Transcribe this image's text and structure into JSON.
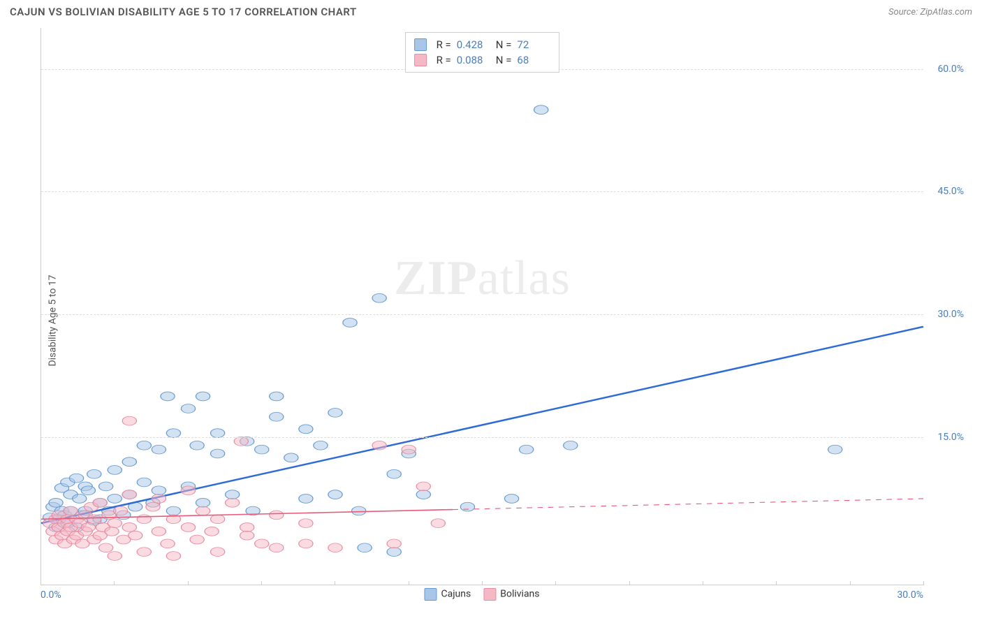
{
  "header": {
    "title": "CAJUN VS BOLIVIAN DISABILITY AGE 5 TO 17 CORRELATION CHART",
    "source_prefix": "Source: ",
    "source_name": "ZipAtlas.com"
  },
  "chart": {
    "type": "scatter",
    "ylabel": "Disability Age 5 to 17",
    "xlim": [
      0,
      30
    ],
    "ylim": [
      -3,
      65
    ],
    "x_tick_start": "0.0%",
    "x_tick_end": "30.0%",
    "x_tick_positions": [
      0,
      2.5,
      5,
      7.5,
      10,
      12.5,
      15,
      17.5,
      20,
      22.5,
      25,
      27.5,
      30
    ],
    "y_ticks": [
      {
        "value": 15,
        "label": "15.0%"
      },
      {
        "value": 30,
        "label": "30.0%"
      },
      {
        "value": 45,
        "label": "45.0%"
      },
      {
        "value": 60,
        "label": "60.0%"
      }
    ],
    "background_color": "#ffffff",
    "grid_color": "#dddddd",
    "axis_color": "#cccccc",
    "marker_radius": 8,
    "marker_opacity": 0.5,
    "series": [
      {
        "name": "Cajuns",
        "color_fill": "#a8c6e8",
        "color_stroke": "#6699cc",
        "trend_color": "#2e6bd6",
        "trend_width": 3,
        "trend_dash_after": 30,
        "R": "0.428",
        "N": "72",
        "trend": {
          "x0": 0,
          "y0": 4.5,
          "x1": 30,
          "y1": 28.5
        },
        "points": [
          [
            0.3,
            5.2
          ],
          [
            0.4,
            6.5
          ],
          [
            0.5,
            4.0
          ],
          [
            0.5,
            7.0
          ],
          [
            0.6,
            5.0
          ],
          [
            0.7,
            8.8
          ],
          [
            0.7,
            6.0
          ],
          [
            0.8,
            5.5
          ],
          [
            0.9,
            9.5
          ],
          [
            0.9,
            4.5
          ],
          [
            1.0,
            6.0
          ],
          [
            1.0,
            8.0
          ],
          [
            1.2,
            10.0
          ],
          [
            1.2,
            4.0
          ],
          [
            1.3,
            7.5
          ],
          [
            1.4,
            5.5
          ],
          [
            1.5,
            9.0
          ],
          [
            1.5,
            6.0
          ],
          [
            1.6,
            8.5
          ],
          [
            1.8,
            4.8
          ],
          [
            1.8,
            10.5
          ],
          [
            2.0,
            7.0
          ],
          [
            2.0,
            5.0
          ],
          [
            2.2,
            9.0
          ],
          [
            2.3,
            6.0
          ],
          [
            2.5,
            11.0
          ],
          [
            2.5,
            7.5
          ],
          [
            2.8,
            5.5
          ],
          [
            3.0,
            8.0
          ],
          [
            3.0,
            12.0
          ],
          [
            3.2,
            6.5
          ],
          [
            3.5,
            9.5
          ],
          [
            3.5,
            14.0
          ],
          [
            3.8,
            7.0
          ],
          [
            4.0,
            13.5
          ],
          [
            4.0,
            8.5
          ],
          [
            4.3,
            20.0
          ],
          [
            4.5,
            15.5
          ],
          [
            4.5,
            6.0
          ],
          [
            5.0,
            18.5
          ],
          [
            5.0,
            9.0
          ],
          [
            5.3,
            14.0
          ],
          [
            5.5,
            20.0
          ],
          [
            5.5,
            7.0
          ],
          [
            6.0,
            13.0
          ],
          [
            6.0,
            15.5
          ],
          [
            6.5,
            8.0
          ],
          [
            7.0,
            14.5
          ],
          [
            7.2,
            6.0
          ],
          [
            7.5,
            13.5
          ],
          [
            8.0,
            17.5
          ],
          [
            8.0,
            20.0
          ],
          [
            8.5,
            12.5
          ],
          [
            9.0,
            16.0
          ],
          [
            9.0,
            7.5
          ],
          [
            9.5,
            14.0
          ],
          [
            10.0,
            8.0
          ],
          [
            10.0,
            18.0
          ],
          [
            10.5,
            29.0
          ],
          [
            10.8,
            6.0
          ],
          [
            11.0,
            1.5
          ],
          [
            11.5,
            32.0
          ],
          [
            12.0,
            10.5
          ],
          [
            12.5,
            13.0
          ],
          [
            13.0,
            8.0
          ],
          [
            14.5,
            6.5
          ],
          [
            16.0,
            7.5
          ],
          [
            16.5,
            13.5
          ],
          [
            17.0,
            55.0
          ],
          [
            18.0,
            14.0
          ],
          [
            27.0,
            13.5
          ],
          [
            12.0,
            1.0
          ]
        ]
      },
      {
        "name": "Bolivians",
        "color_fill": "#f5b8c5",
        "color_stroke": "#e88ba0",
        "trend_color": "#e85a7a",
        "trend_width": 2,
        "trend_dash_after": 14,
        "R": "0.088",
        "N": "68",
        "trend": {
          "x0": 0,
          "y0": 5.0,
          "x1": 30,
          "y1": 7.5
        },
        "points": [
          [
            0.3,
            4.5
          ],
          [
            0.4,
            3.5
          ],
          [
            0.5,
            5.0
          ],
          [
            0.5,
            2.5
          ],
          [
            0.6,
            4.0
          ],
          [
            0.6,
            5.5
          ],
          [
            0.7,
            3.0
          ],
          [
            0.8,
            4.5
          ],
          [
            0.8,
            2.0
          ],
          [
            0.9,
            5.0
          ],
          [
            0.9,
            3.5
          ],
          [
            1.0,
            4.0
          ],
          [
            1.0,
            6.0
          ],
          [
            1.1,
            2.5
          ],
          [
            1.2,
            5.0
          ],
          [
            1.2,
            3.0
          ],
          [
            1.3,
            4.5
          ],
          [
            1.4,
            2.0
          ],
          [
            1.5,
            5.5
          ],
          [
            1.5,
            3.5
          ],
          [
            1.6,
            4.0
          ],
          [
            1.7,
            6.5
          ],
          [
            1.8,
            2.5
          ],
          [
            1.8,
            5.0
          ],
          [
            2.0,
            3.0
          ],
          [
            2.0,
            7.0
          ],
          [
            2.1,
            4.0
          ],
          [
            2.2,
            1.5
          ],
          [
            2.3,
            5.5
          ],
          [
            2.4,
            3.5
          ],
          [
            2.5,
            4.5
          ],
          [
            2.5,
            0.5
          ],
          [
            2.7,
            6.0
          ],
          [
            2.8,
            2.5
          ],
          [
            3.0,
            4.0
          ],
          [
            3.0,
            8.0
          ],
          [
            3.0,
            17.0
          ],
          [
            3.2,
            3.0
          ],
          [
            3.5,
            5.0
          ],
          [
            3.5,
            1.0
          ],
          [
            3.8,
            6.5
          ],
          [
            4.0,
            3.5
          ],
          [
            4.0,
            7.5
          ],
          [
            4.3,
            2.0
          ],
          [
            4.5,
            5.0
          ],
          [
            4.5,
            0.5
          ],
          [
            5.0,
            4.0
          ],
          [
            5.0,
            8.5
          ],
          [
            5.3,
            2.5
          ],
          [
            5.5,
            6.0
          ],
          [
            5.8,
            3.5
          ],
          [
            6.0,
            5.0
          ],
          [
            6.0,
            1.0
          ],
          [
            6.5,
            7.0
          ],
          [
            6.8,
            14.5
          ],
          [
            7.0,
            4.0
          ],
          [
            7.0,
            3.0
          ],
          [
            7.5,
            2.0
          ],
          [
            8.0,
            5.5
          ],
          [
            8.0,
            1.5
          ],
          [
            9.0,
            4.5
          ],
          [
            9.0,
            2.0
          ],
          [
            10.0,
            1.5
          ],
          [
            11.5,
            14.0
          ],
          [
            12.5,
            13.5
          ],
          [
            12.0,
            2.0
          ],
          [
            13.0,
            9.0
          ],
          [
            13.5,
            4.5
          ]
        ]
      }
    ],
    "watermark": {
      "part1": "ZIP",
      "part2": "atlas"
    }
  },
  "legend_stat_labels": {
    "r": "R =",
    "n": "N ="
  }
}
